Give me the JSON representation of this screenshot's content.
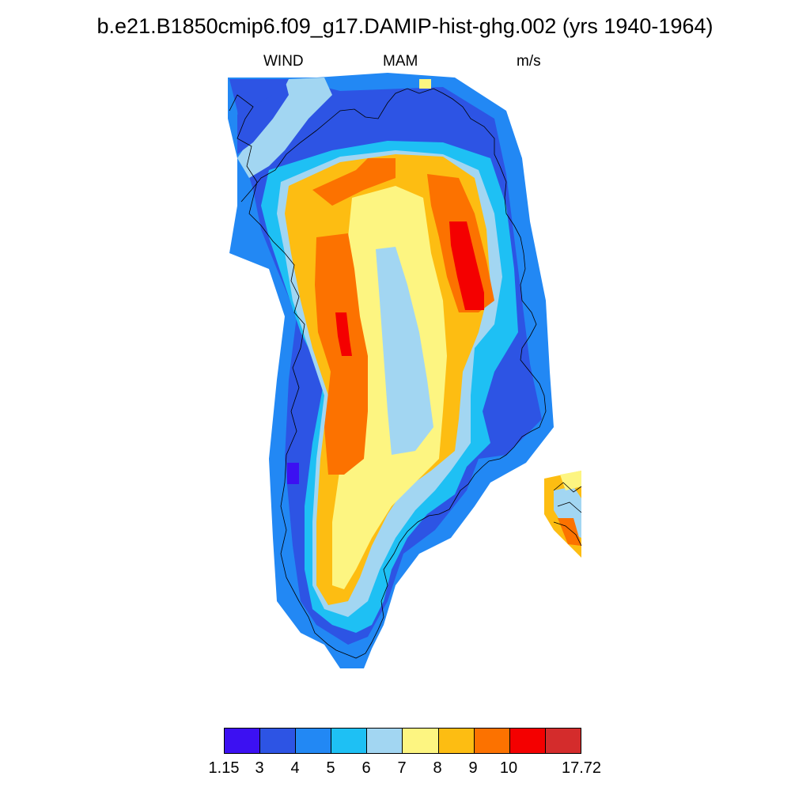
{
  "title": "b.e21.B1850cmip6.f09_g17.DAMIP-hist-ghg.002 (yrs 1940-1964)",
  "subtitle": {
    "left": "WIND",
    "center": "MAM",
    "right": "m/s"
  },
  "colors": {
    "c0": "#3c10f2",
    "c1": "#2d54e4",
    "c2": "#2288f4",
    "c3": "#1ec0f4",
    "c4": "#a2d6f2",
    "c5": "#fdf581",
    "c6": "#fdbd12",
    "c7": "#fc7200",
    "c8": "#f40000",
    "c9": "#d42c2c"
  },
  "legend": {
    "colors": [
      "#3c10f2",
      "#2d54e4",
      "#2288f4",
      "#1ec0f4",
      "#a2d6f2",
      "#fdf581",
      "#fdbd12",
      "#fc7200",
      "#f40000",
      "#d42c2c"
    ],
    "labels": [
      "1.15",
      "3",
      "4",
      "5",
      "6",
      "7",
      "8",
      "9",
      "10",
      "17.72"
    ]
  },
  "map_bands": [
    {
      "color": "c2",
      "pts": [
        [
          288,
          98
        ],
        [
          400,
          98
        ],
        [
          490,
          92
        ],
        [
          575,
          98
        ],
        [
          640,
          140
        ],
        [
          660,
          200
        ],
        [
          670,
          280
        ],
        [
          690,
          380
        ],
        [
          695,
          470
        ],
        [
          700,
          540
        ],
        [
          665,
          585
        ],
        [
          620,
          610
        ],
        [
          600,
          640
        ],
        [
          570,
          680
        ],
        [
          530,
          700
        ],
        [
          500,
          740
        ],
        [
          485,
          790
        ],
        [
          470,
          820
        ],
        [
          460,
          845
        ],
        [
          430,
          845
        ],
        [
          410,
          815
        ],
        [
          380,
          800
        ],
        [
          350,
          760
        ],
        [
          345,
          680
        ],
        [
          340,
          580
        ],
        [
          350,
          480
        ],
        [
          360,
          400
        ],
        [
          340,
          340
        ],
        [
          290,
          320
        ],
        [
          300,
          260
        ],
        [
          300,
          200
        ],
        [
          288,
          150
        ]
      ]
    },
    {
      "color": "c1",
      "pts": [
        [
          290,
          100
        ],
        [
          370,
          100
        ],
        [
          430,
          115
        ],
        [
          560,
          110
        ],
        [
          625,
          150
        ],
        [
          640,
          220
        ],
        [
          650,
          300
        ],
        [
          660,
          380
        ],
        [
          670,
          460
        ],
        [
          685,
          530
        ],
        [
          640,
          575
        ],
        [
          605,
          580
        ],
        [
          590,
          620
        ],
        [
          550,
          670
        ],
        [
          510,
          700
        ],
        [
          490,
          760
        ],
        [
          465,
          805
        ],
        [
          440,
          815
        ],
        [
          400,
          790
        ],
        [
          380,
          760
        ],
        [
          370,
          690
        ],
        [
          360,
          580
        ],
        [
          365,
          480
        ],
        [
          375,
          400
        ],
        [
          350,
          340
        ],
        [
          330,
          290
        ],
        [
          320,
          240
        ],
        [
          305,
          190
        ],
        [
          300,
          140
        ]
      ]
    },
    {
      "color": "c3",
      "pts": [
        [
          340,
          215
        ],
        [
          420,
          190
        ],
        [
          490,
          178
        ],
        [
          560,
          180
        ],
        [
          620,
          200
        ],
        [
          640,
          260
        ],
        [
          650,
          340
        ],
        [
          655,
          420
        ],
        [
          625,
          470
        ],
        [
          610,
          520
        ],
        [
          620,
          560
        ],
        [
          590,
          590
        ],
        [
          575,
          625
        ],
        [
          540,
          650
        ],
        [
          515,
          680
        ],
        [
          495,
          720
        ],
        [
          485,
          760
        ],
        [
          470,
          790
        ],
        [
          450,
          800
        ],
        [
          420,
          790
        ],
        [
          395,
          770
        ],
        [
          385,
          720
        ],
        [
          385,
          640
        ],
        [
          395,
          560
        ],
        [
          410,
          480
        ],
        [
          380,
          420
        ],
        [
          360,
          360
        ],
        [
          340,
          300
        ],
        [
          330,
          260
        ]
      ]
    },
    {
      "color": "c4",
      "pts": [
        [
          355,
          230
        ],
        [
          430,
          198
        ],
        [
          500,
          190
        ],
        [
          560,
          195
        ],
        [
          605,
          215
        ],
        [
          625,
          270
        ],
        [
          635,
          350
        ],
        [
          625,
          410
        ],
        [
          600,
          440
        ],
        [
          595,
          500
        ],
        [
          595,
          560
        ],
        [
          570,
          595
        ],
        [
          550,
          620
        ],
        [
          525,
          645
        ],
        [
          500,
          680
        ],
        [
          480,
          720
        ],
        [
          465,
          760
        ],
        [
          440,
          780
        ],
        [
          410,
          770
        ],
        [
          395,
          740
        ],
        [
          395,
          660
        ],
        [
          400,
          580
        ],
        [
          410,
          500
        ],
        [
          390,
          440
        ],
        [
          370,
          380
        ],
        [
          360,
          320
        ],
        [
          350,
          270
        ]
      ]
    },
    {
      "color": "c6",
      "pts": [
        [
          365,
          235
        ],
        [
          430,
          205
        ],
        [
          500,
          195
        ],
        [
          560,
          198
        ],
        [
          600,
          225
        ],
        [
          615,
          290
        ],
        [
          620,
          360
        ],
        [
          605,
          420
        ],
        [
          585,
          470
        ],
        [
          580,
          530
        ],
        [
          575,
          570
        ],
        [
          545,
          595
        ],
        [
          510,
          620
        ],
        [
          490,
          650
        ],
        [
          470,
          690
        ],
        [
          455,
          730
        ],
        [
          440,
          760
        ],
        [
          415,
          765
        ],
        [
          400,
          740
        ],
        [
          400,
          660
        ],
        [
          405,
          580
        ],
        [
          415,
          500
        ],
        [
          395,
          440
        ],
        [
          380,
          380
        ],
        [
          368,
          320
        ],
        [
          360,
          270
        ]
      ]
    },
    {
      "color": "c5",
      "pts": [
        [
          445,
          250
        ],
        [
          500,
          235
        ],
        [
          535,
          250
        ],
        [
          545,
          320
        ],
        [
          560,
          380
        ],
        [
          565,
          450
        ],
        [
          560,
          520
        ],
        [
          555,
          580
        ],
        [
          525,
          610
        ],
        [
          495,
          640
        ],
        [
          470,
          680
        ],
        [
          450,
          720
        ],
        [
          435,
          745
        ],
        [
          420,
          740
        ],
        [
          420,
          660
        ],
        [
          430,
          590
        ],
        [
          440,
          520
        ],
        [
          445,
          440
        ],
        [
          440,
          370
        ],
        [
          440,
          300
        ]
      ]
    },
    {
      "color": "c4",
      "pts": [
        [
          475,
          315
        ],
        [
          500,
          312
        ],
        [
          515,
          360
        ],
        [
          530,
          420
        ],
        [
          540,
          480
        ],
        [
          548,
          540
        ],
        [
          525,
          570
        ],
        [
          495,
          575
        ],
        [
          490,
          520
        ],
        [
          485,
          450
        ],
        [
          480,
          380
        ]
      ]
    },
    {
      "color": "c7",
      "pts": [
        [
          400,
          300
        ],
        [
          440,
          295
        ],
        [
          448,
          340
        ],
        [
          455,
          400
        ],
        [
          465,
          450
        ],
        [
          465,
          520
        ],
        [
          460,
          580
        ],
        [
          435,
          600
        ],
        [
          415,
          600
        ],
        [
          410,
          540
        ],
        [
          418,
          470
        ],
        [
          402,
          420
        ],
        [
          398,
          360
        ]
      ]
    },
    {
      "color": "c7",
      "pts": [
        [
          540,
          220
        ],
        [
          580,
          225
        ],
        [
          600,
          270
        ],
        [
          615,
          330
        ],
        [
          625,
          380
        ],
        [
          605,
          395
        ],
        [
          580,
          395
        ],
        [
          565,
          350
        ],
        [
          555,
          300
        ],
        [
          545,
          260
        ]
      ]
    },
    {
      "color": "c7",
      "pts": [
        [
          395,
          240
        ],
        [
          450,
          215
        ],
        [
          465,
          200
        ],
        [
          500,
          200
        ],
        [
          500,
          225
        ],
        [
          460,
          240
        ],
        [
          420,
          260
        ]
      ]
    },
    {
      "color": "c8",
      "pts": [
        [
          568,
          280
        ],
        [
          590,
          280
        ],
        [
          602,
          330
        ],
        [
          612,
          370
        ],
        [
          612,
          392
        ],
        [
          588,
          392
        ],
        [
          578,
          350
        ],
        [
          570,
          310
        ]
      ]
    },
    {
      "color": "c8",
      "pts": [
        [
          424,
          395
        ],
        [
          438,
          395
        ],
        [
          442,
          430
        ],
        [
          445,
          450
        ],
        [
          432,
          450
        ],
        [
          427,
          425
        ]
      ]
    },
    {
      "color": "c4",
      "pts": [
        [
          365,
          100
        ],
        [
          410,
          98
        ],
        [
          420,
          120
        ],
        [
          390,
          150
        ],
        [
          360,
          190
        ],
        [
          340,
          210
        ],
        [
          315,
          225
        ],
        [
          300,
          200
        ],
        [
          320,
          170
        ],
        [
          345,
          140
        ]
      ]
    },
    {
      "color": "c1",
      "pts": [
        [
          300,
          145
        ],
        [
          345,
          120
        ],
        [
          360,
          100
        ],
        [
          365,
          120
        ],
        [
          345,
          150
        ],
        [
          320,
          180
        ],
        [
          300,
          195
        ]
      ]
    },
    {
      "color": "c6",
      "pts": [
        [
          688,
          605
        ],
        [
          735,
          595
        ],
        [
          735,
          705
        ],
        [
          720,
          690
        ],
        [
          700,
          670
        ],
        [
          688,
          650
        ]
      ]
    },
    {
      "color": "c4",
      "pts": [
        [
          700,
          620
        ],
        [
          725,
          615
        ],
        [
          735,
          630
        ],
        [
          735,
          680
        ],
        [
          715,
          670
        ],
        [
          700,
          645
        ]
      ]
    },
    {
      "color": "c7",
      "pts": [
        [
          705,
          655
        ],
        [
          725,
          655
        ],
        [
          735,
          690
        ],
        [
          718,
          688
        ]
      ]
    },
    {
      "color": "c5",
      "pts": [
        [
          708,
          600
        ],
        [
          735,
          595
        ],
        [
          735,
          615
        ],
        [
          715,
          620
        ]
      ]
    },
    {
      "color": "c0",
      "pts": [
        [
          363,
          585
        ],
        [
          378,
          585
        ],
        [
          378,
          612
        ],
        [
          363,
          612
        ]
      ]
    },
    {
      "color": "c5",
      "pts": [
        [
          530,
          100
        ],
        [
          545,
          100
        ],
        [
          545,
          112
        ],
        [
          530,
          112
        ]
      ]
    }
  ],
  "coast_paths": [
    "M290 140 L300 120 L320 135 L310 150 L300 175 L318 185 L312 210 L325 230 L320 250 L315 270 L330 285 L345 305 L360 320 L372 335 L368 355 L378 375 L372 395 L385 410 L380 440 L370 465 L378 490 L368 520 L375 545 L362 575 L360 610 L355 640 L362 670 L355 700 L362 730 L378 760 L390 780 L398 800 L415 815 L425 822 L440 828 L450 832 L462 826 L470 812 L478 796 L485 780 L482 760 L490 740 L485 720 L498 700 L505 686 L515 672 L528 660 L542 652 L555 650 L568 644 L575 632 L582 620 L592 612 L600 600 L610 590 L618 583 L632 580 L640 575 L650 565 L660 552 L672 545 L682 540 L690 520 L688 500 L682 485 L670 470 L658 455 L660 440 L670 425 L678 410 L672 395 L660 380 L658 360 L664 340 L662 320 L658 300 L650 285 L640 270 L638 250 L640 230 L632 210 L625 195 L625 175 L612 160 L595 150 L585 135 L572 125 L560 118 L548 112 L530 118 L515 112 L500 118 L490 130 L478 150 L462 148 L448 138 L430 140 L418 150 L400 165 L380 180 L362 195 L348 215 L330 225 L318 240 L305 255",
    "M700 620 L712 610 L725 622 L735 615 M705 640 L720 635 L735 648 M700 660 L715 665 L728 676 L735 690"
  ]
}
